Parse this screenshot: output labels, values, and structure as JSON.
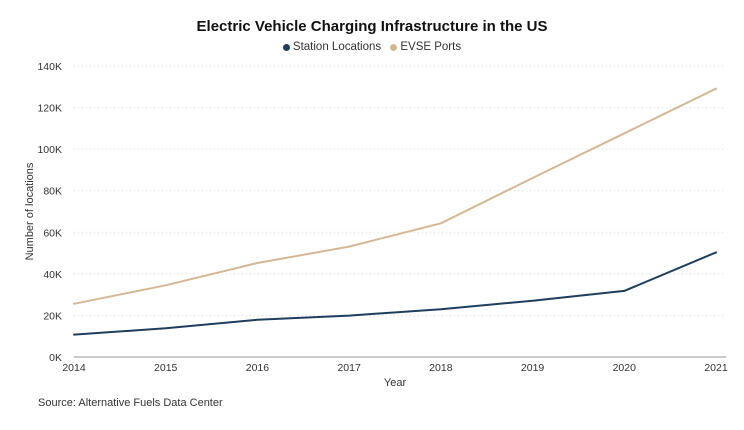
{
  "chart_data": {
    "type": "line",
    "title": "Electric Vehicle Charging Infrastructure in the US",
    "xlabel": "Year",
    "ylabel": "Number of locations",
    "x": [
      "2014",
      "2015",
      "2016",
      "2017",
      "2018",
      "2019",
      "2020",
      "2021"
    ],
    "ylim": [
      0,
      140000
    ],
    "yticks": [
      0,
      20000,
      40000,
      60000,
      80000,
      100000,
      120000,
      140000
    ],
    "ytick_labels": [
      "0K",
      "20K",
      "40K",
      "60K",
      "80K",
      "100K",
      "120K",
      "140K"
    ],
    "grid": true,
    "legend": "top-center",
    "series": [
      {
        "name": "Station Locations",
        "color": "#1f3d5c",
        "values": [
          10800,
          13800,
          17900,
          19900,
          23000,
          27100,
          31800,
          50300
        ]
      },
      {
        "name": "EVSE Ports",
        "color": "#d4b896",
        "values": [
          25600,
          34500,
          45200,
          53100,
          64300,
          86100,
          107600,
          129100
        ]
      }
    ],
    "source": "Source: Alternative Fuels Data Center"
  }
}
